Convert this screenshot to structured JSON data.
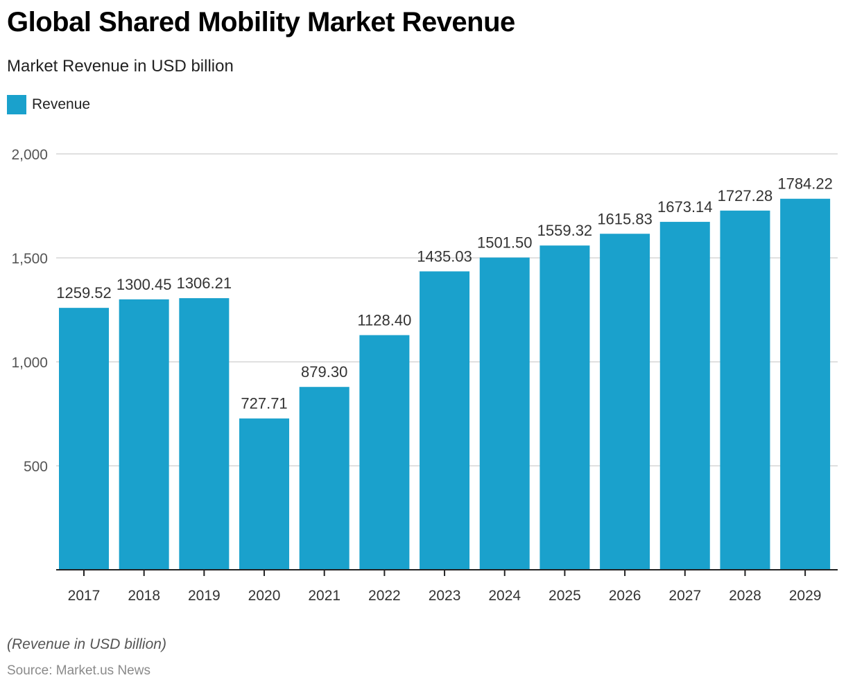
{
  "header": {
    "title": "Global Shared Mobility Market Revenue",
    "subtitle": "Market Revenue in USD billion"
  },
  "legend": {
    "label": "Revenue",
    "color": "#1aa1cc"
  },
  "footer": {
    "note": "(Revenue in USD billion)",
    "source": "Source: Market.us News"
  },
  "chart_data": {
    "type": "bar",
    "title": "Global Shared Mobility Market Revenue",
    "subtitle": "Market Revenue in USD billion",
    "xlabel": "",
    "ylabel": "",
    "categories": [
      "2017",
      "2018",
      "2019",
      "2020",
      "2021",
      "2022",
      "2023",
      "2024",
      "2025",
      "2026",
      "2027",
      "2028",
      "2029"
    ],
    "series": [
      {
        "name": "Revenue",
        "color": "#1aa1cc",
        "values": [
          1259.52,
          1300.45,
          1306.21,
          727.71,
          879.3,
          1128.4,
          1435.03,
          1501.5,
          1559.32,
          1615.83,
          1673.14,
          1727.28,
          1784.22
        ],
        "labels": [
          "1259.52",
          "1300.45",
          "1306.21",
          "727.71",
          "879.30",
          "1128.40",
          "1435.03",
          "1501.50",
          "1559.32",
          "1615.83",
          "1673.14",
          "1727.28",
          "1784.22"
        ]
      }
    ],
    "ylim": [
      0,
      2000
    ],
    "yticks": [
      500,
      1000,
      1500,
      2000
    ],
    "ytick_labels": [
      "500",
      "1,000",
      "1,500",
      "2,000"
    ],
    "grid": true,
    "legend_position": "top-left"
  }
}
